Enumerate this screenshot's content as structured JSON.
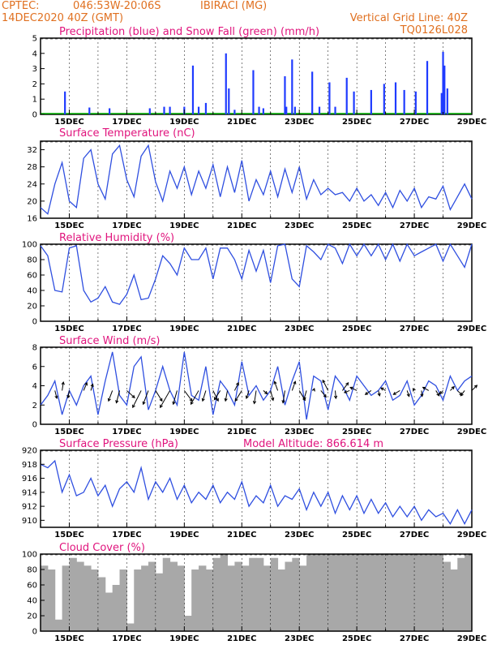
{
  "header": {
    "line1_left": "CPTEC:",
    "line1_mid": "046:53W-20:06S",
    "line1_right": "IBIRACI (MG)",
    "line2_left": "14DEC2020 40Z (GMT)",
    "line2_right": "Vertical Grid Line: 40Z",
    "line3_right": "TQ0126L028"
  },
  "x_axis_dates": [
    "15DEC",
    "17DEC",
    "19DEC",
    "21DEC",
    "23DEC",
    "25DEC",
    "27DEC",
    "29DEC"
  ],
  "colors": {
    "precip": "#1f3bff",
    "snow": "#00b000",
    "line": "#2f4fe0",
    "cloud": "#a8a8a8",
    "title": "#e0147d",
    "header": "#e07020"
  },
  "panels": {
    "precip": {
      "title": "Precipitation (blue) and Snow Fall (green) (mm/h)"
    },
    "temp": {
      "title": "Surface Temperature (nC)"
    },
    "rh": {
      "title": "Relative Humidity (%)"
    },
    "wind": {
      "title": "Surface Wind (m/s)"
    },
    "pres": {
      "title": "Surface Pressure (hPa)",
      "extra": "Model Altitude: 866.614 m"
    },
    "cloud": {
      "title": "Cloud Cover (%)"
    }
  },
  "chart_data": [
    {
      "type": "bar",
      "key": "precip",
      "ylim": [
        0,
        5
      ],
      "yticks": [
        0,
        1,
        2,
        3,
        4,
        5
      ],
      "x_days": [
        14.85,
        15.7,
        16.4,
        17.8,
        18.3,
        18.5,
        19.0,
        19.3,
        19.5,
        19.75,
        20.45,
        20.55,
        20.75,
        21.4,
        21.6,
        21.75,
        22.5,
        22.55,
        22.75,
        22.85,
        23.45,
        23.7,
        24.05,
        24.25,
        24.65,
        24.9,
        25.5,
        25.95,
        26.35,
        26.65,
        27.05,
        27.45,
        27.95,
        28.0,
        28.05,
        28.15
      ],
      "values": [
        1.5,
        0.45,
        0.4,
        0.4,
        0.5,
        0.5,
        0.5,
        3.2,
        0.5,
        0.75,
        4.0,
        1.7,
        0.3,
        2.9,
        0.5,
        0.4,
        2.5,
        0.5,
        3.6,
        0.5,
        2.8,
        0.5,
        2.1,
        0.5,
        2.4,
        1.5,
        1.6,
        2.0,
        2.1,
        1.6,
        1.5,
        3.5,
        1.4,
        4.1,
        3.2,
        1.7
      ]
    },
    {
      "type": "line",
      "key": "temp",
      "ylim": [
        16,
        34
      ],
      "yticks": [
        16,
        20,
        24,
        28,
        32
      ],
      "x_days": [
        14.0,
        14.25,
        14.5,
        14.75,
        15.0,
        15.25,
        15.5,
        15.75,
        16.0,
        16.25,
        16.5,
        16.75,
        17.0,
        17.25,
        17.5,
        17.75,
        18.0,
        18.25,
        18.5,
        18.75,
        19.0,
        19.25,
        19.5,
        19.75,
        20.0,
        20.25,
        20.5,
        20.75,
        21.0,
        21.25,
        21.5,
        21.75,
        22.0,
        22.25,
        22.5,
        22.75,
        23.0,
        23.25,
        23.5,
        23.75,
        24.0,
        24.25,
        24.5,
        24.75,
        25.0,
        25.25,
        25.5,
        25.75,
        26.0,
        26.25,
        26.5,
        26.75,
        27.0,
        27.25,
        27.5,
        27.75,
        28.0,
        28.25,
        28.5,
        28.75,
        29.0
      ],
      "values": [
        18.5,
        17.0,
        24.0,
        29.0,
        20.0,
        18.5,
        30.0,
        32.0,
        24.0,
        20.5,
        31.0,
        33.0,
        25.0,
        21.0,
        30.5,
        33.0,
        24.5,
        20.0,
        27.0,
        23.0,
        28.0,
        21.5,
        27.0,
        23.0,
        28.5,
        21.0,
        28.0,
        22.0,
        29.5,
        20.0,
        25.0,
        21.5,
        27.0,
        21.0,
        27.5,
        22.0,
        28.0,
        20.5,
        25.0,
        21.5,
        23.0,
        21.5,
        22.0,
        20.0,
        23.0,
        20.0,
        21.5,
        19.0,
        22.0,
        18.5,
        22.5,
        20.0,
        23.0,
        18.5,
        21.0,
        20.5,
        23.5,
        18.0,
        21.0,
        24.0,
        20.5
      ]
    },
    {
      "type": "line",
      "key": "rh",
      "ylim": [
        0,
        100
      ],
      "yticks": [
        0,
        20,
        40,
        60,
        80,
        100
      ],
      "x_days": [
        14.0,
        14.25,
        14.5,
        14.75,
        15.0,
        15.25,
        15.5,
        15.75,
        16.0,
        16.25,
        16.5,
        16.75,
        17.0,
        17.25,
        17.5,
        17.75,
        18.0,
        18.25,
        18.5,
        18.75,
        19.0,
        19.25,
        19.5,
        19.75,
        20.0,
        20.25,
        20.5,
        20.75,
        21.0,
        21.25,
        21.5,
        21.75,
        22.0,
        22.25,
        22.5,
        22.75,
        23.0,
        23.25,
        23.5,
        23.75,
        24.0,
        24.25,
        24.5,
        24.75,
        25.0,
        25.25,
        25.5,
        25.75,
        26.0,
        26.25,
        26.5,
        26.75,
        27.0,
        27.25,
        27.5,
        27.75,
        28.0,
        28.25,
        28.5,
        28.75,
        29.0
      ],
      "values": [
        98.0,
        85.0,
        40.0,
        38.0,
        95.0,
        98.0,
        40.0,
        25.0,
        30.0,
        45.0,
        25.0,
        22.0,
        35.0,
        60.0,
        28.0,
        30.0,
        55.0,
        85.0,
        75.0,
        60.0,
        95.0,
        80.0,
        80.0,
        95.0,
        55.0,
        95.0,
        95.0,
        80.0,
        55.0,
        92.0,
        65.0,
        92.0,
        50.0,
        98.0,
        100.0,
        55.0,
        45.0,
        98.0,
        90.0,
        80.0,
        100.0,
        95.0,
        75.0,
        100.0,
        85.0,
        100.0,
        85.0,
        100.0,
        80.0,
        100.0,
        78.0,
        100.0,
        85.0,
        90.0,
        95.0,
        100.0,
        78.0,
        100.0,
        85.0,
        70.0,
        100.0
      ]
    },
    {
      "type": "line",
      "key": "wind",
      "ylim": [
        0,
        8
      ],
      "yticks": [
        0,
        2,
        4,
        6,
        8
      ],
      "x_days": [
        14.0,
        14.25,
        14.5,
        14.75,
        15.0,
        15.25,
        15.5,
        15.75,
        16.0,
        16.25,
        16.5,
        16.75,
        17.0,
        17.25,
        17.5,
        17.75,
        18.0,
        18.25,
        18.5,
        18.75,
        19.0,
        19.25,
        19.5,
        19.75,
        20.0,
        20.25,
        20.5,
        20.75,
        21.0,
        21.25,
        21.5,
        21.75,
        22.0,
        22.25,
        22.5,
        22.75,
        23.0,
        23.25,
        23.5,
        23.75,
        24.0,
        24.25,
        24.5,
        24.75,
        25.0,
        25.25,
        25.5,
        25.75,
        26.0,
        26.25,
        26.5,
        26.75,
        27.0,
        27.25,
        27.5,
        27.75,
        28.0,
        28.25,
        28.5,
        28.75,
        29.0
      ],
      "values": [
        2.0,
        3.0,
        4.5,
        1.0,
        3.5,
        2.0,
        4.0,
        5.0,
        1.0,
        4.5,
        7.5,
        3.0,
        2.0,
        6.0,
        7.0,
        1.5,
        3.5,
        6.0,
        3.5,
        2.0,
        7.5,
        3.0,
        2.5,
        6.0,
        1.0,
        4.5,
        3.5,
        2.0,
        6.5,
        3.0,
        4.0,
        2.5,
        3.5,
        6.0,
        2.0,
        4.5,
        6.5,
        0.5,
        5.0,
        4.5,
        1.5,
        5.0,
        4.0,
        2.5,
        5.0,
        4.0,
        3.0,
        3.5,
        4.5,
        2.5,
        3.0,
        4.5,
        2.0,
        3.0,
        4.5,
        4.0,
        2.5,
        5.0,
        3.5,
        4.5,
        5.0
      ]
    },
    {
      "type": "line",
      "key": "pres",
      "ylim": [
        909,
        920
      ],
      "yticks": [
        910,
        912,
        914,
        916,
        918,
        920
      ],
      "x_days": [
        14.0,
        14.25,
        14.5,
        14.75,
        15.0,
        15.25,
        15.5,
        15.75,
        16.0,
        16.25,
        16.5,
        16.75,
        17.0,
        17.25,
        17.5,
        17.75,
        18.0,
        18.25,
        18.5,
        18.75,
        19.0,
        19.25,
        19.5,
        19.75,
        20.0,
        20.25,
        20.5,
        20.75,
        21.0,
        21.25,
        21.5,
        21.75,
        22.0,
        22.25,
        22.5,
        22.75,
        23.0,
        23.25,
        23.5,
        23.75,
        24.0,
        24.25,
        24.5,
        24.75,
        25.0,
        25.25,
        25.5,
        25.75,
        26.0,
        26.25,
        26.5,
        26.75,
        27.0,
        27.25,
        27.5,
        27.75,
        28.0,
        28.25,
        28.5,
        28.75,
        29.0
      ],
      "values": [
        918.0,
        917.5,
        918.5,
        914.0,
        916.5,
        913.5,
        914.0,
        916.0,
        913.5,
        915.0,
        912.0,
        914.5,
        915.5,
        914.0,
        917.5,
        913.0,
        915.5,
        914.0,
        916.0,
        913.0,
        915.0,
        912.5,
        914.0,
        913.0,
        915.0,
        912.5,
        914.0,
        913.0,
        915.5,
        912.0,
        913.5,
        912.5,
        915.0,
        912.0,
        913.5,
        913.0,
        914.5,
        911.5,
        914.0,
        912.0,
        914.0,
        911.0,
        913.5,
        911.5,
        913.5,
        911.0,
        913.0,
        911.0,
        912.5,
        910.5,
        912.0,
        910.5,
        912.0,
        910.0,
        911.5,
        910.5,
        911.0,
        909.5,
        911.5,
        909.5,
        911.5
      ]
    },
    {
      "type": "bar",
      "key": "cloud",
      "ylim": [
        0,
        100
      ],
      "yticks": [
        0,
        20,
        40,
        60,
        80,
        100
      ],
      "x_days": [
        14.0,
        14.25,
        14.5,
        14.75,
        15.0,
        15.25,
        15.5,
        15.75,
        16.0,
        16.25,
        16.5,
        16.75,
        17.0,
        17.25,
        17.5,
        17.75,
        18.0,
        18.25,
        18.5,
        18.75,
        19.0,
        19.25,
        19.5,
        19.75,
        20.0,
        20.25,
        20.5,
        20.75,
        21.0,
        21.25,
        21.5,
        21.75,
        22.0,
        22.25,
        22.5,
        22.75,
        23.0,
        23.25,
        23.5,
        23.75,
        24.0,
        24.25,
        24.5,
        24.75,
        25.0,
        25.25,
        25.5,
        25.75,
        26.0,
        26.25,
        26.5,
        26.75,
        27.0,
        27.25,
        27.5,
        27.75,
        28.0,
        28.25,
        28.5,
        28.75,
        29.0
      ],
      "values": [
        85,
        80,
        15,
        85,
        95,
        90,
        85,
        80,
        70,
        50,
        60,
        80,
        10,
        80,
        85,
        90,
        75,
        95,
        90,
        85,
        20,
        80,
        85,
        80,
        95,
        100,
        85,
        90,
        85,
        95,
        95,
        85,
        95,
        80,
        90,
        95,
        85,
        100,
        100,
        100,
        100,
        100,
        100,
        100,
        100,
        100,
        100,
        100,
        100,
        100,
        100,
        100,
        100,
        100,
        100,
        100,
        90,
        80,
        95,
        100,
        100
      ]
    },
    {
      "type": "scatter",
      "key": "wind_arrows",
      "x_days": [
        14.5,
        14.75,
        15.0,
        15.5,
        15.75,
        16.5,
        16.75,
        17.0,
        17.5,
        17.75,
        18.0,
        18.5,
        18.75,
        19.0,
        19.5,
        19.75,
        20.0,
        20.25,
        20.5,
        20.75,
        21.0,
        21.25,
        21.5,
        21.75,
        22.0,
        22.25,
        22.5,
        22.75,
        23.0,
        23.25,
        23.5,
        23.75,
        24.0,
        24.25,
        24.5,
        24.75,
        25.0,
        25.5,
        25.75,
        26.0,
        26.5,
        26.75,
        27.0,
        27.25,
        27.5,
        27.75,
        28.0,
        28.25,
        28.5,
        28.75,
        29.0
      ],
      "u": [
        0.3,
        0.2,
        -0.2,
        0.5,
        0.3,
        -0.6,
        -0.5,
        1.2,
        -1.3,
        -0.8,
        1.0,
        -1.5,
        -0.6,
        1.2,
        -1.2,
        -0.5,
        0.8,
        -0.9,
        -0.3,
        0.6,
        -1.0,
        -0.4,
        -0.3,
        0.6,
        0.4,
        -0.5,
        -0.3,
        0.5,
        0.9,
        -0.4,
        0.1,
        0.8,
        -0.8,
        0.1,
        0.9,
        -0.8,
        -1.0,
        -0.9,
        0.2,
        -0.7,
        -1.0,
        0.3,
        -0.2,
        0.1,
        -0.9,
        0.5,
        -0.5,
        0.6,
        0.7,
        -0.6,
        0.8
      ],
      "v": [
        -1.2,
        1.3,
        -1.1,
        1.2,
        1.0,
        -1.6,
        -1.9,
        -1.1,
        -2.6,
        -2.1,
        -1.6,
        -2.6,
        -2.1,
        -1.6,
        -2.1,
        -1.6,
        -1.6,
        -1.4,
        -1.6,
        1.2,
        -1.6,
        -1.2,
        -2.0,
        -0.5,
        -1.5,
        1.4,
        -1.9,
        1.4,
        -1.5,
        -1.4,
        0.3,
        -1.0,
        1.6,
        -1.2,
        1.2,
        -0.3,
        0.5,
        -0.6,
        -0.8,
        0.4,
        -0.6,
        -0.9,
        0.3,
        -0.9,
        0.5,
        -0.8,
        -0.5,
        0.6,
        -0.7,
        -0.8,
        0.8
      ]
    }
  ]
}
